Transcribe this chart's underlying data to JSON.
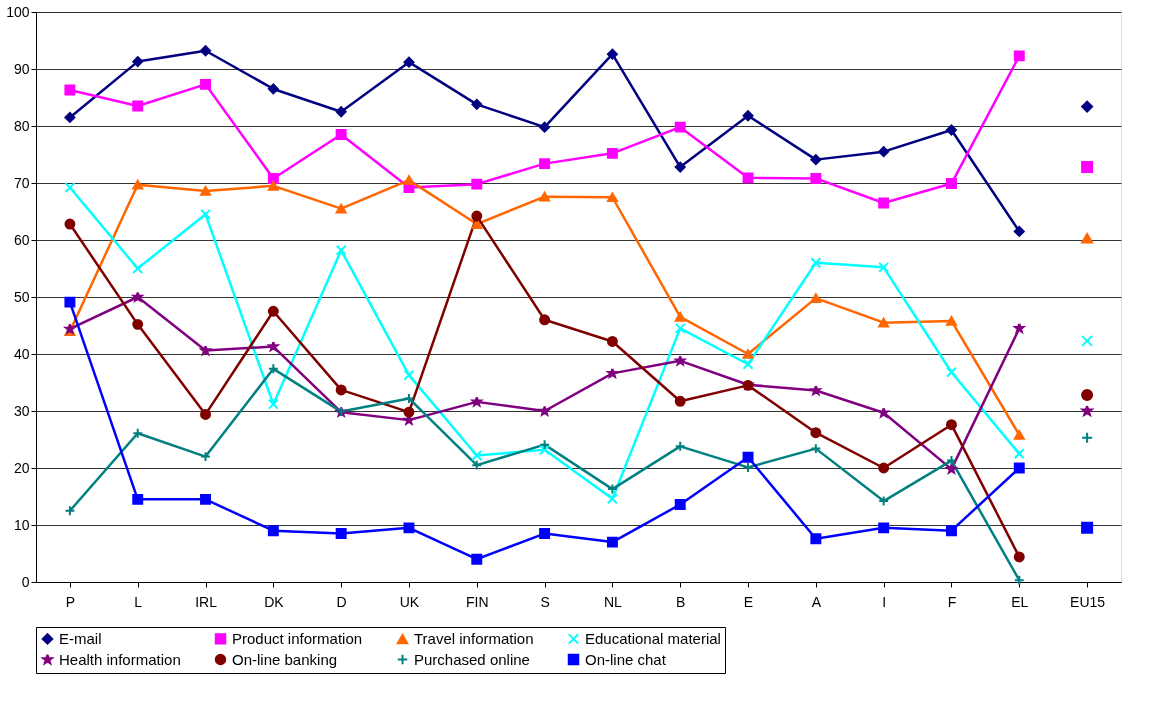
{
  "chart_data": {
    "type": "line",
    "categories": [
      "P",
      "L",
      "IRL",
      "DK",
      "D",
      "UK",
      "FIN",
      "S",
      "NL",
      "B",
      "E",
      "A",
      "I",
      "F",
      "EL",
      "EU15"
    ],
    "ylim": [
      0,
      100
    ],
    "yticks": [
      0,
      10,
      20,
      30,
      40,
      50,
      60,
      70,
      80,
      90,
      100
    ],
    "grid": "y",
    "legend": "bottom",
    "series": [
      {
        "name": "E-mail",
        "color": "#000080",
        "marker": "diamond",
        "values": [
          81.5,
          91.3,
          93.2,
          86.5,
          82.5,
          91.2,
          83.8,
          79.8,
          92.6,
          72.8,
          81.8,
          74.1,
          75.5,
          79.3,
          61.5,
          null
        ]
      },
      {
        "name": "Product information",
        "color": "#ff00ff",
        "marker": "square",
        "values": [
          86.3,
          83.5,
          87.3,
          70.8,
          78.5,
          69.2,
          69.8,
          73.4,
          75.2,
          79.8,
          70.9,
          70.8,
          66.5,
          69.9,
          92.3,
          null
        ]
      },
      {
        "name": "Travel information",
        "color": "#ff6600",
        "marker": "triangle",
        "values": [
          44.0,
          69.7,
          68.6,
          69.5,
          65.5,
          70.5,
          62.8,
          67.6,
          67.5,
          46.5,
          40.0,
          49.8,
          45.5,
          45.8,
          25.8,
          null
        ]
      },
      {
        "name": "Educational material",
        "color": "#00ffff",
        "marker": "cross",
        "values": [
          69.2,
          55.0,
          64.5,
          31.2,
          58.2,
          36.3,
          22.2,
          23.2,
          14.6,
          44.5,
          38.2,
          56.0,
          55.2,
          36.8,
          22.5,
          null
        ]
      },
      {
        "name": "Health information",
        "color": "#800080",
        "marker": "star",
        "values": [
          44.4,
          50.0,
          40.6,
          41.3,
          29.8,
          28.4,
          31.6,
          30.0,
          36.6,
          38.8,
          34.6,
          33.6,
          29.7,
          19.8,
          44.5,
          null
        ]
      },
      {
        "name": "On-line banking",
        "color": "#800000",
        "marker": "circle",
        "values": [
          62.8,
          45.2,
          29.4,
          47.5,
          33.7,
          29.8,
          64.2,
          46.0,
          42.2,
          31.7,
          34.5,
          26.2,
          20.0,
          27.6,
          4.4,
          null
        ]
      },
      {
        "name": "Purchased online",
        "color": "#008080",
        "marker": "plus",
        "values": [
          12.5,
          26.1,
          22.0,
          37.4,
          29.9,
          32.2,
          20.5,
          24.1,
          16.3,
          23.8,
          20.1,
          23.4,
          14.2,
          21.3,
          0.3,
          null
        ]
      },
      {
        "name": "On-line chat",
        "color": "#0000ff",
        "marker": "square",
        "values": [
          49.1,
          14.5,
          14.5,
          9.0,
          8.5,
          9.5,
          4.0,
          8.5,
          7.0,
          13.6,
          21.9,
          7.6,
          9.5,
          9.0,
          20.0,
          null
        ]
      },
      {
        "type": "scatter",
        "color": "#000080",
        "marker": "diamond",
        "values": [
          null,
          null,
          null,
          null,
          null,
          null,
          null,
          null,
          null,
          null,
          null,
          null,
          null,
          null,
          null,
          83.4
        ]
      },
      {
        "type": "scatter",
        "color": "#ff00ff",
        "marker": "square",
        "values": [
          null,
          null,
          null,
          null,
          null,
          null,
          null,
          null,
          null,
          null,
          null,
          null,
          null,
          null,
          null,
          72.8
        ]
      },
      {
        "type": "scatter",
        "color": "#ff6600",
        "marker": "triangle",
        "values": [
          null,
          null,
          null,
          null,
          null,
          null,
          null,
          null,
          null,
          null,
          null,
          null,
          null,
          null,
          null,
          60.3
        ]
      },
      {
        "type": "scatter",
        "color": "#00ffff",
        "marker": "cross",
        "values": [
          null,
          null,
          null,
          null,
          null,
          null,
          null,
          null,
          null,
          null,
          null,
          null,
          null,
          null,
          null,
          42.3
        ]
      },
      {
        "type": "scatter",
        "color": "#800080",
        "marker": "star",
        "values": [
          null,
          null,
          null,
          null,
          null,
          null,
          null,
          null,
          null,
          null,
          null,
          null,
          null,
          null,
          null,
          30.0
        ]
      },
      {
        "type": "scatter",
        "color": "#800000",
        "marker": "circle",
        "values": [
          null,
          null,
          null,
          null,
          null,
          null,
          null,
          null,
          null,
          null,
          null,
          null,
          null,
          null,
          null,
          32.8
        ]
      },
      {
        "type": "scatter",
        "color": "#008080",
        "marker": "plus",
        "values": [
          null,
          null,
          null,
          null,
          null,
          null,
          null,
          null,
          null,
          null,
          null,
          null,
          null,
          null,
          null,
          25.3
        ]
      },
      {
        "type": "scatter",
        "color": "#0000ff",
        "marker": "square",
        "values": [
          null,
          null,
          null,
          null,
          null,
          null,
          null,
          null,
          null,
          null,
          null,
          null,
          null,
          null,
          null,
          9.5
        ]
      }
    ]
  }
}
